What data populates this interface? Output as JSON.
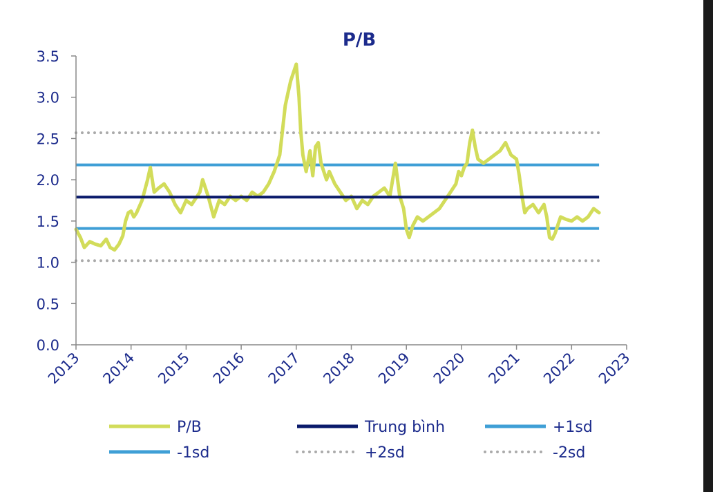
{
  "chart_data": {
    "type": "line",
    "title": "P/B",
    "xlabel": "",
    "ylabel": "",
    "xlim": [
      2013,
      2023
    ],
    "ylim": [
      0,
      3.5
    ],
    "x_ticks": [
      "2013",
      "2014",
      "2015",
      "2016",
      "2017",
      "2018",
      "2019",
      "2020",
      "2021",
      "2022",
      "2023"
    ],
    "y_ticks": [
      "0.0",
      "0.5",
      "1.0",
      "1.5",
      "2.0",
      "2.5",
      "3.0",
      "3.5"
    ],
    "series": [
      {
        "name": "P/B",
        "color": "#d2dc5a",
        "style": "solid",
        "x": [
          2013.0,
          2013.08,
          2013.15,
          2013.25,
          2013.35,
          2013.45,
          2013.55,
          2013.62,
          2013.7,
          2013.78,
          2013.85,
          2013.9,
          2013.95,
          2014.0,
          2014.05,
          2014.1,
          2014.2,
          2014.3,
          2014.35,
          2014.42,
          2014.5,
          2014.6,
          2014.7,
          2014.8,
          2014.9,
          2015.0,
          2015.1,
          2015.15,
          2015.25,
          2015.3,
          2015.4,
          2015.5,
          2015.6,
          2015.7,
          2015.8,
          2015.9,
          2016.0,
          2016.1,
          2016.2,
          2016.3,
          2016.4,
          2016.5,
          2016.6,
          2016.7,
          2016.75,
          2016.8,
          2016.85,
          2016.9,
          2016.95,
          2017.0,
          2017.05,
          2017.08,
          2017.12,
          2017.18,
          2017.25,
          2017.3,
          2017.35,
          2017.4,
          2017.45,
          2017.55,
          2017.6,
          2017.7,
          2017.8,
          2017.9,
          2018.0,
          2018.1,
          2018.2,
          2018.3,
          2018.4,
          2018.5,
          2018.6,
          2018.7,
          2018.8,
          2018.88,
          2018.95,
          2019.0,
          2019.05,
          2019.12,
          2019.2,
          2019.3,
          2019.4,
          2019.5,
          2019.6,
          2019.7,
          2019.8,
          2019.9,
          2019.95,
          2020.0,
          2020.05,
          2020.1,
          2020.15,
          2020.2,
          2020.25,
          2020.3,
          2020.4,
          2020.5,
          2020.6,
          2020.7,
          2020.8,
          2020.9,
          2021.0,
          2021.05,
          2021.1,
          2021.15,
          2021.2,
          2021.3,
          2021.4,
          2021.5,
          2021.55,
          2021.6,
          2021.65,
          2021.7,
          2021.75,
          2021.8,
          2021.9,
          2022.0,
          2022.1,
          2022.2,
          2022.3,
          2022.4,
          2022.5
        ],
        "values": [
          1.4,
          1.3,
          1.18,
          1.25,
          1.22,
          1.2,
          1.28,
          1.18,
          1.15,
          1.22,
          1.32,
          1.5,
          1.6,
          1.62,
          1.55,
          1.6,
          1.75,
          2.0,
          2.15,
          1.85,
          1.9,
          1.95,
          1.85,
          1.7,
          1.6,
          1.75,
          1.7,
          1.75,
          1.85,
          2.0,
          1.8,
          1.55,
          1.75,
          1.7,
          1.8,
          1.75,
          1.8,
          1.75,
          1.85,
          1.8,
          1.85,
          1.95,
          2.1,
          2.3,
          2.6,
          2.9,
          3.05,
          3.2,
          3.3,
          3.4,
          3.0,
          2.6,
          2.3,
          2.1,
          2.35,
          2.05,
          2.4,
          2.45,
          2.2,
          2.0,
          2.1,
          1.95,
          1.85,
          1.75,
          1.8,
          1.65,
          1.75,
          1.7,
          1.8,
          1.85,
          1.9,
          1.8,
          2.2,
          1.8,
          1.65,
          1.4,
          1.3,
          1.45,
          1.55,
          1.5,
          1.55,
          1.6,
          1.65,
          1.75,
          1.85,
          1.95,
          2.1,
          2.05,
          2.15,
          2.2,
          2.45,
          2.6,
          2.4,
          2.25,
          2.2,
          2.25,
          2.3,
          2.35,
          2.45,
          2.3,
          2.25,
          2.05,
          1.8,
          1.6,
          1.65,
          1.7,
          1.6,
          1.7,
          1.55,
          1.3,
          1.28,
          1.35,
          1.45,
          1.55,
          1.52,
          1.5,
          1.55,
          1.5,
          1.55,
          1.65,
          1.6
        ]
      },
      {
        "name": "Trung bình",
        "color": "#0a1a6b",
        "style": "solid",
        "x": [
          2013,
          2022.5
        ],
        "values": [
          1.79,
          1.79
        ]
      },
      {
        "name": "+1sd",
        "color": "#3f9fd6",
        "style": "solid",
        "x": [
          2013,
          2022.5
        ],
        "values": [
          2.18,
          2.18
        ]
      },
      {
        "name": "-1sd",
        "color": "#3f9fd6",
        "style": "solid",
        "x": [
          2013,
          2022.5
        ],
        "values": [
          1.41,
          1.41
        ]
      },
      {
        "name": "+2sd",
        "color": "#aaaaaa",
        "style": "dotted",
        "x": [
          2013,
          2022.5
        ],
        "values": [
          2.57,
          2.57
        ]
      },
      {
        "name": "-2sd",
        "color": "#aaaaaa",
        "style": "dotted",
        "x": [
          2013,
          2022.5
        ],
        "values": [
          1.02,
          1.02
        ]
      }
    ],
    "legend": [
      {
        "label": "P/B",
        "color": "#d2dc5a",
        "style": "solid"
      },
      {
        "label": "Trung bình",
        "color": "#0a1a6b",
        "style": "solid"
      },
      {
        "label": "+1sd",
        "color": "#3f9fd6",
        "style": "solid"
      },
      {
        "label": "-1sd",
        "color": "#3f9fd6",
        "style": "solid"
      },
      {
        "label": "+2sd",
        "color": "#aaaaaa",
        "style": "dotted"
      },
      {
        "label": "-2sd",
        "color": "#aaaaaa",
        "style": "dotted"
      }
    ],
    "legend_position": "bottom",
    "grid": false
  }
}
